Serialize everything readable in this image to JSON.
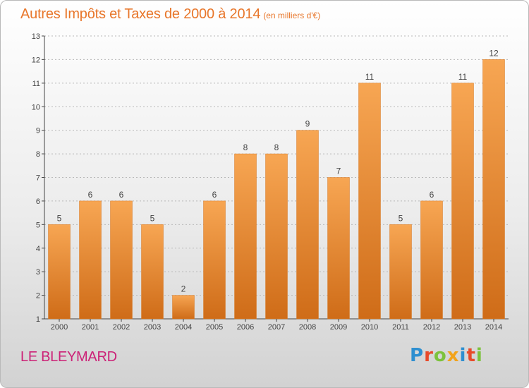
{
  "title": "Autres Impôts et Taxes de 2000 à 2014",
  "unit": "(en milliers d'€)",
  "commune": "LE BLEYMARD",
  "logo": {
    "letters": [
      "P",
      "r",
      "o",
      "x",
      "i",
      "t",
      "i"
    ],
    "colors": [
      "#2e8fd0",
      "#e84a2a",
      "#7cc23c",
      "#f2a31b",
      "#2e8fd0",
      "#e84a2a",
      "#7cc23c"
    ]
  },
  "colors": {
    "title": "#e8762a",
    "commune": "#cc2277",
    "bar_top": "#f7a653",
    "bar_bottom": "#cf6c18",
    "grid": "#b8b8b8"
  },
  "chart_data": {
    "type": "bar",
    "categories": [
      "2000",
      "2001",
      "2002",
      "2003",
      "2004",
      "2005",
      "2006",
      "2007",
      "2008",
      "2009",
      "2010",
      "2011",
      "2012",
      "2013",
      "2014"
    ],
    "values": [
      5,
      6,
      6,
      5,
      2,
      6,
      8,
      8,
      9,
      7,
      11,
      5,
      6,
      11,
      12
    ],
    "title": "Autres Impôts et Taxes de 2000 à 2014",
    "ylabel": "",
    "xlabel": "",
    "ylim": [
      1,
      13
    ],
    "yticks": [
      1,
      2,
      3,
      4,
      5,
      6,
      7,
      8,
      9,
      10,
      11,
      12,
      13
    ],
    "grid": true,
    "data_labels": true
  }
}
